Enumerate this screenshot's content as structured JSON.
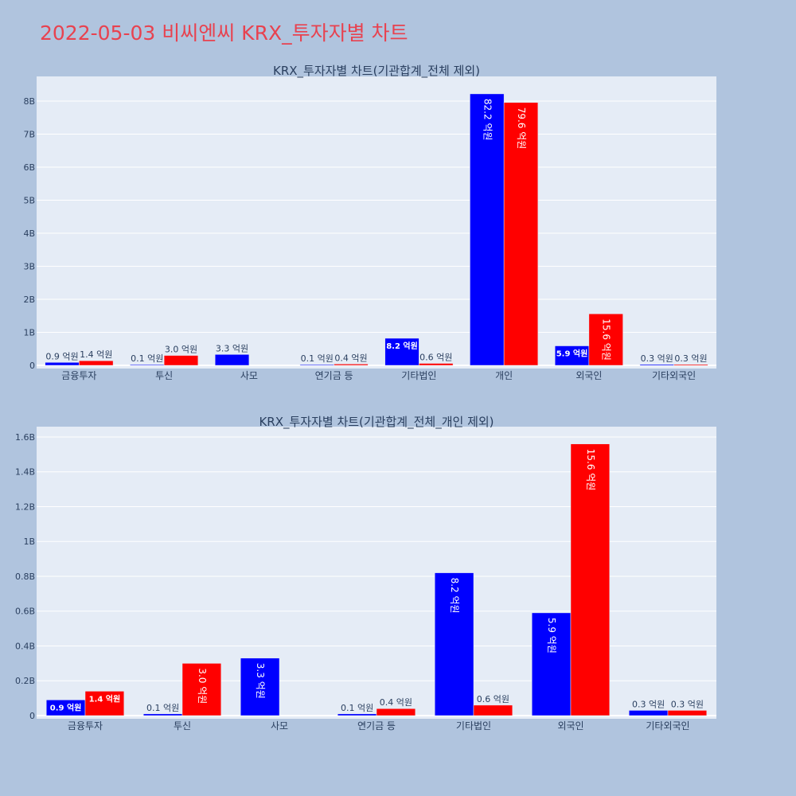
{
  "page_title": "2022-05-03 비씨엔씨 KRX_투자자별 차트",
  "colors": {
    "buy": "#0000ff",
    "sell": "#ff0000",
    "plot_bg": "#e5ecf6",
    "page_bg": "#b0c4de",
    "title": "#e8424f"
  },
  "chart_data": [
    {
      "type": "bar",
      "title": "KRX_투자자별 차트(기관합계_전체 제외)",
      "categories": [
        "금융투자",
        "투신",
        "사모",
        "연기금 등",
        "기타법인",
        "개인",
        "외국인",
        "기타외국인"
      ],
      "series": [
        {
          "color": "#0000ff",
          "values": [
            90000000,
            10000000,
            330000000,
            10000000,
            820000000,
            8220000000,
            590000000,
            30000000
          ],
          "labels": [
            "0.9 억원",
            "0.1 억원",
            "3.3 억원",
            "0.1 억원",
            "8.2 억원",
            "82.2 억원",
            "5.9 억원",
            "0.3 억원"
          ]
        },
        {
          "color": "#ff0000",
          "values": [
            140000000,
            300000000,
            null,
            40000000,
            60000000,
            7960000000,
            1560000000,
            30000000
          ],
          "labels": [
            "1.4 억원",
            "3.0 억원",
            "",
            "0.4 억원",
            "0.6 억원",
            "79.6 억원",
            "15.6 억원",
            "0.3 억원"
          ]
        }
      ],
      "y_ticks": [
        0,
        1000000000,
        2000000000,
        3000000000,
        4000000000,
        5000000000,
        6000000000,
        7000000000,
        8000000000
      ],
      "y_tick_labels": [
        "0",
        "1B",
        "2B",
        "3B",
        "4B",
        "5B",
        "6B",
        "7B",
        "8B"
      ],
      "ylim": [
        0,
        8700000000
      ],
      "grid": true,
      "legend": "none"
    },
    {
      "type": "bar",
      "title": "KRX_투자자별 차트(기관합계_전체_개인 제외)",
      "categories": [
        "금융투자",
        "투신",
        "사모",
        "연기금 등",
        "기타법인",
        "외국인",
        "기타외국인"
      ],
      "series": [
        {
          "color": "#0000ff",
          "values": [
            90000000,
            10000000,
            330000000,
            10000000,
            820000000,
            590000000,
            30000000
          ],
          "labels": [
            "0.9 억원",
            "0.1 억원",
            "3.3 억원",
            "0.1 억원",
            "8.2 억원",
            "5.9 억원",
            "0.3 억원"
          ]
        },
        {
          "color": "#ff0000",
          "values": [
            140000000,
            300000000,
            null,
            40000000,
            60000000,
            1560000000,
            30000000
          ],
          "labels": [
            "1.4 억원",
            "3.0 억원",
            "",
            "0.4 억원",
            "0.6 억원",
            "15.6 억원",
            "0.3 억원"
          ]
        }
      ],
      "y_ticks": [
        0,
        200000000,
        400000000,
        600000000,
        800000000,
        1000000000,
        1200000000,
        1400000000,
        1600000000
      ],
      "y_tick_labels": [
        "0",
        "0.2B",
        "0.4B",
        "0.6B",
        "0.8B",
        "1B",
        "1.2B",
        "1.4B",
        "1.6B"
      ],
      "ylim": [
        0,
        1650000000
      ],
      "grid": true,
      "legend": "none"
    }
  ]
}
